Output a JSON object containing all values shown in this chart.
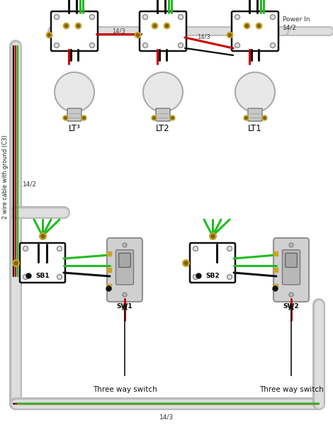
{
  "bg": "#ffffff",
  "black": "#111111",
  "green": "#22bb22",
  "red": "#cc0000",
  "white": "#ffffff",
  "lgray": "#c8c8c8",
  "dgray": "#888888",
  "gold": "#c8a428",
  "conduit_outer": "#bbbbbb",
  "conduit_inner": "#dedede",
  "box_fill": "#ffffff",
  "box_edge": "#111111",
  "switch_fill": "#cccccc",
  "switch_edge": "#888888",
  "bulb_fill": "#e0e0e0",
  "labels": {
    "lt1": "LT1",
    "lt2": "LT2",
    "lt3": "LT³",
    "sb1": "SB1",
    "sb2": "SB2",
    "sw1": "SW1",
    "sw2": "SW2",
    "power_in": "Power In",
    "wire_142": "14/2",
    "wire_143": "14/3",
    "three_way": "Three way switch",
    "cable_side": "2 wire cable with ground (C3)"
  }
}
